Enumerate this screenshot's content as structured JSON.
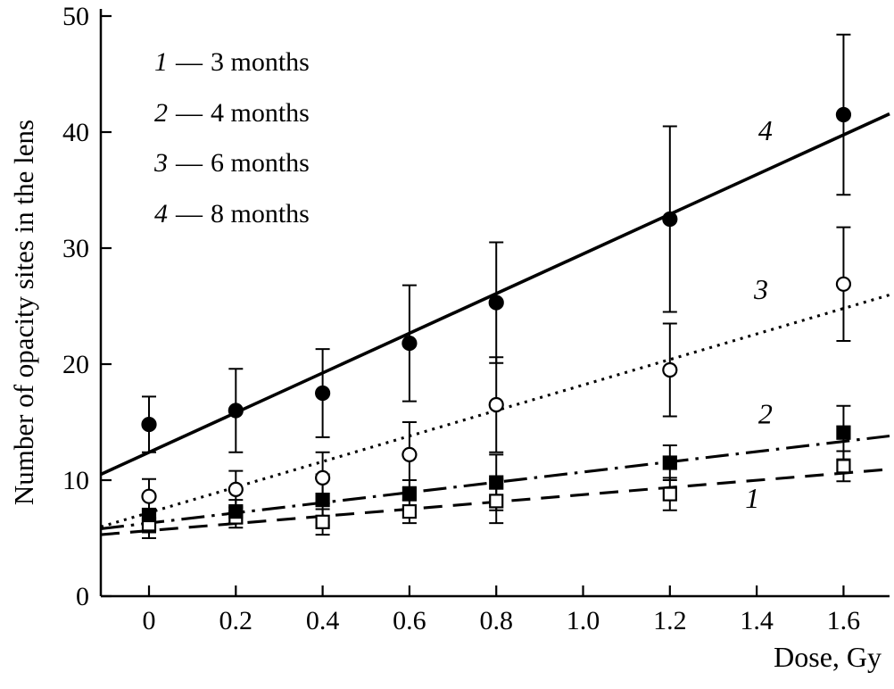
{
  "figure": {
    "xlabel": "Dose, Gy",
    "ylabel": "Number of opacity sites in the lens"
  },
  "legend": {
    "sep": "—",
    "items": [
      {
        "num": "1",
        "name": "3 months"
      },
      {
        "num": "2",
        "name": "4 months"
      },
      {
        "num": "3",
        "name": "6 months"
      },
      {
        "num": "4",
        "name": "8 months"
      }
    ]
  },
  "chart_data": {
    "type": "scatter",
    "title": "",
    "xlabel": "Dose, Gy",
    "ylabel": "Number of opacity sites in the lens",
    "xlim": [
      -0.111,
      1.706
    ],
    "ylim": [
      0,
      50
    ],
    "grid": false,
    "legend_position": "top-left",
    "xticks": [
      0,
      0.2,
      0.4,
      0.6,
      0.8,
      1.0,
      1.2,
      1.4,
      1.6
    ],
    "xtick_labels": [
      "0",
      "0.2",
      "0.4",
      "0.6",
      "0.8",
      "1.0",
      "1.2",
      "1.4",
      "1.6"
    ],
    "yticks": [
      0,
      10,
      20,
      30,
      40,
      50
    ],
    "ytick_labels": [
      "0",
      "10",
      "20",
      "30",
      "40",
      "50"
    ],
    "x": [
      0,
      0.2,
      0.4,
      0.6,
      0.8,
      1.2,
      1.6
    ],
    "series": [
      {
        "name": "1",
        "legend": "1 — 3 months",
        "marker": "square-open",
        "line_style": "dashed",
        "color": "#000000",
        "values": [
          6.2,
          6.8,
          6.4,
          7.3,
          8.2,
          8.8,
          11.2
        ],
        "errors": [
          1.2,
          0.9,
          1.1,
          1.0,
          1.9,
          1.4,
          1.3
        ],
        "fit_line": {
          "slope": 3.1,
          "intercept": 5.65
        },
        "label_pos": {
          "x": 1.39,
          "y": 7.6
        }
      },
      {
        "name": "2",
        "legend": "2 — 4 months",
        "marker": "square-filled",
        "line_style": "dashdot",
        "color": "#000000",
        "values": [
          7.0,
          7.3,
          8.3,
          8.8,
          9.8,
          11.5,
          14.1
        ],
        "errors": [
          1.5,
          1.0,
          2.2,
          1.2,
          2.4,
          1.5,
          2.3
        ],
        "fit_line": {
          "slope": 4.4,
          "intercept": 6.3
        },
        "label_pos": {
          "x": 1.42,
          "y": 14.9
        }
      },
      {
        "name": "3",
        "legend": "3 — 6 months",
        "marker": "circle-open",
        "line_style": "dotted",
        "color": "#000000",
        "values": [
          8.6,
          9.2,
          10.2,
          12.2,
          16.5,
          19.5,
          26.9
        ],
        "errors": [
          1.5,
          1.6,
          2.2,
          2.8,
          4.1,
          4.0,
          4.9
        ],
        "fit_line": {
          "slope": 11.0,
          "intercept": 7.2
        },
        "label_pos": {
          "x": 1.41,
          "y": 25.6
        }
      },
      {
        "name": "4",
        "legend": "4 — 8 months",
        "marker": "circle-filled",
        "line_style": "solid",
        "color": "#000000",
        "values": [
          14.8,
          16.0,
          17.5,
          21.8,
          25.3,
          32.5,
          41.5
        ],
        "errors": [
          2.4,
          3.6,
          3.8,
          5.0,
          5.2,
          8.0,
          6.9
        ],
        "fit_line": {
          "slope": 17.1,
          "intercept": 12.4
        },
        "label_pos": {
          "x": 1.42,
          "y": 39.3
        }
      }
    ]
  }
}
